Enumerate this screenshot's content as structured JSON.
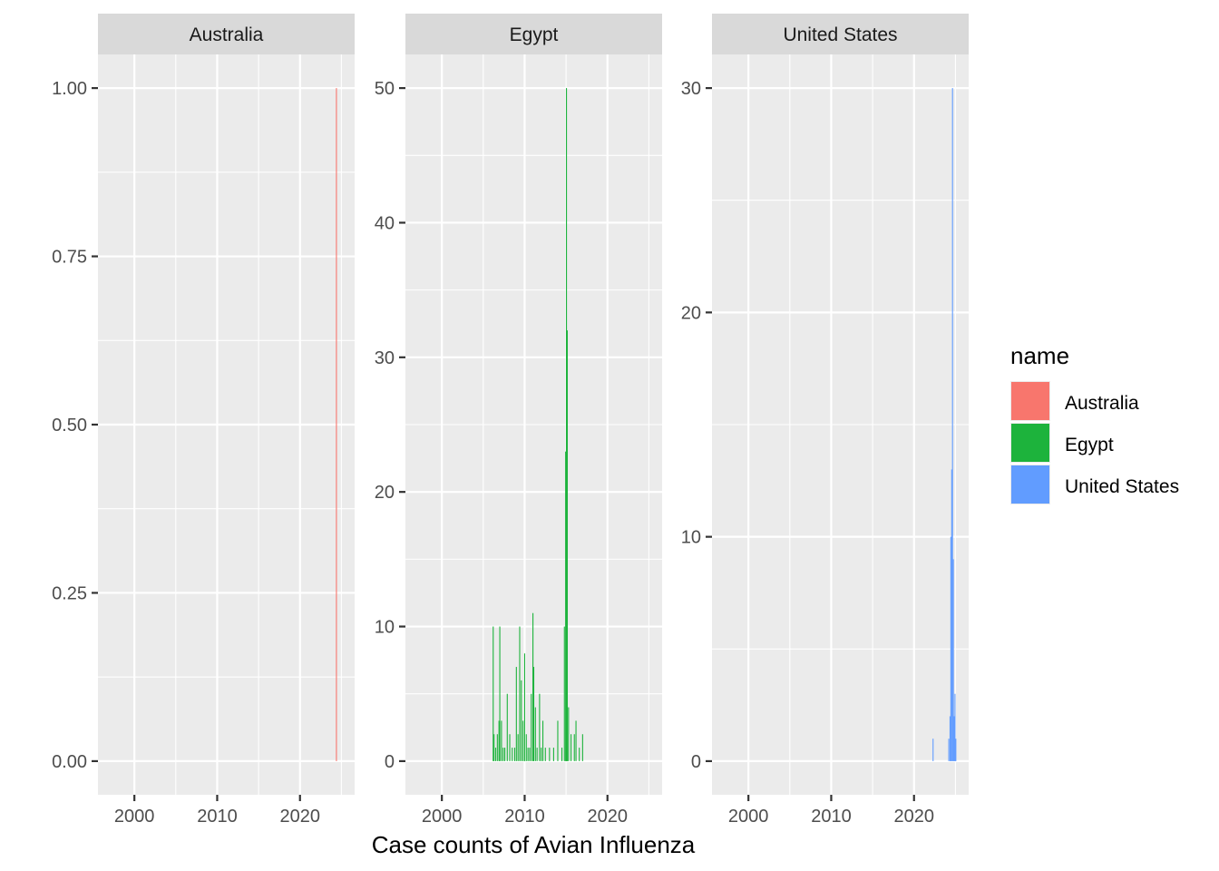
{
  "chart_data": {
    "type": "bar",
    "facet_by": "name",
    "xlabel": "Case counts of Avian Influenza",
    "ylabel": "",
    "xlim": [
      1995.6,
      2026.6
    ],
    "x_breaks": [
      2000,
      2010,
      2020
    ],
    "scales": "free_y",
    "legend": {
      "title": "name",
      "position": "right"
    },
    "panels": [
      {
        "name": "Australia",
        "color": "#F8766D",
        "ylim": [
          -0.05,
          1.05
        ],
        "y_breaks": [
          0,
          0.25,
          0.5,
          0.75,
          1.0
        ],
        "y_labels": [
          "0.00",
          "0.25",
          "0.50",
          "0.75",
          "1.00"
        ],
        "data": [
          {
            "x": 2024.4,
            "y": 1
          }
        ]
      },
      {
        "name": "Egypt",
        "color": "#1DB33C",
        "ylim": [
          -2.5,
          52.5
        ],
        "y_breaks": [
          0,
          10,
          20,
          30,
          40,
          50
        ],
        "y_labels": [
          "0",
          "10",
          "20",
          "30",
          "40",
          "50"
        ],
        "data": [
          {
            "x": 2006.2,
            "y": 10
          },
          {
            "x": 2006.3,
            "y": 2
          },
          {
            "x": 2006.5,
            "y": 1
          },
          {
            "x": 2006.7,
            "y": 2
          },
          {
            "x": 2006.9,
            "y": 3
          },
          {
            "x": 2007.0,
            "y": 10
          },
          {
            "x": 2007.2,
            "y": 3
          },
          {
            "x": 2007.4,
            "y": 1
          },
          {
            "x": 2007.6,
            "y": 1
          },
          {
            "x": 2007.9,
            "y": 5
          },
          {
            "x": 2008.2,
            "y": 2
          },
          {
            "x": 2008.5,
            "y": 1
          },
          {
            "x": 2008.8,
            "y": 1
          },
          {
            "x": 2009.0,
            "y": 7
          },
          {
            "x": 2009.2,
            "y": 2
          },
          {
            "x": 2009.4,
            "y": 10
          },
          {
            "x": 2009.6,
            "y": 6
          },
          {
            "x": 2009.8,
            "y": 3
          },
          {
            "x": 2010.0,
            "y": 8
          },
          {
            "x": 2010.2,
            "y": 2
          },
          {
            "x": 2010.4,
            "y": 1
          },
          {
            "x": 2010.6,
            "y": 1
          },
          {
            "x": 2010.8,
            "y": 5
          },
          {
            "x": 2011.0,
            "y": 11
          },
          {
            "x": 2011.1,
            "y": 7
          },
          {
            "x": 2011.3,
            "y": 4
          },
          {
            "x": 2011.5,
            "y": 1
          },
          {
            "x": 2011.8,
            "y": 5
          },
          {
            "x": 2012.0,
            "y": 1
          },
          {
            "x": 2012.2,
            "y": 3
          },
          {
            "x": 2012.5,
            "y": 1
          },
          {
            "x": 2013.0,
            "y": 1
          },
          {
            "x": 2013.5,
            "y": 1
          },
          {
            "x": 2014.0,
            "y": 3
          },
          {
            "x": 2014.5,
            "y": 1
          },
          {
            "x": 2014.8,
            "y": 10
          },
          {
            "x": 2014.95,
            "y": 23
          },
          {
            "x": 2015.05,
            "y": 50
          },
          {
            "x": 2015.15,
            "y": 32
          },
          {
            "x": 2015.3,
            "y": 4
          },
          {
            "x": 2015.6,
            "y": 2
          },
          {
            "x": 2016.0,
            "y": 2
          },
          {
            "x": 2016.2,
            "y": 3
          },
          {
            "x": 2016.6,
            "y": 1
          },
          {
            "x": 2017.0,
            "y": 2
          }
        ]
      },
      {
        "name": "United States",
        "color": "#619CFF",
        "ylim": [
          -1.5,
          31.5
        ],
        "y_breaks": [
          0,
          10,
          20,
          30
        ],
        "y_labels": [
          "0",
          "10",
          "20",
          "30"
        ],
        "data": [
          {
            "x": 2022.3,
            "y": 1
          },
          {
            "x": 2024.2,
            "y": 1
          },
          {
            "x": 2024.35,
            "y": 2
          },
          {
            "x": 2024.45,
            "y": 10
          },
          {
            "x": 2024.55,
            "y": 13
          },
          {
            "x": 2024.65,
            "y": 30
          },
          {
            "x": 2024.75,
            "y": 9
          },
          {
            "x": 2024.85,
            "y": 2
          },
          {
            "x": 2024.95,
            "y": 3
          },
          {
            "x": 2025.05,
            "y": 1
          }
        ]
      }
    ]
  }
}
